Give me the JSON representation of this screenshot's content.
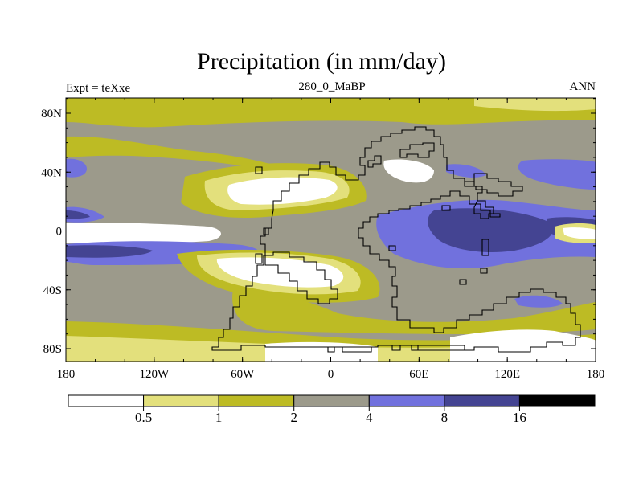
{
  "title": "Precipitation (in mm/day)",
  "left_label": "Expt = teXxe",
  "center_label": "280_0_MaBP",
  "right_label": "ANN",
  "lat_ticks": [
    "80N",
    "40N",
    "0",
    "40S",
    "80S"
  ],
  "lon_ticks": [
    "180",
    "120W",
    "60W",
    "0",
    "60E",
    "120E",
    "180"
  ],
  "colorbar": {
    "labels": [
      "0.5",
      "1",
      "2",
      "4",
      "8",
      "16"
    ],
    "colors": [
      "#ffffff",
      "#e3e07c",
      "#bdbb24",
      "#9c9a8b",
      "#7171dd",
      "#444492",
      "#000000"
    ]
  }
}
